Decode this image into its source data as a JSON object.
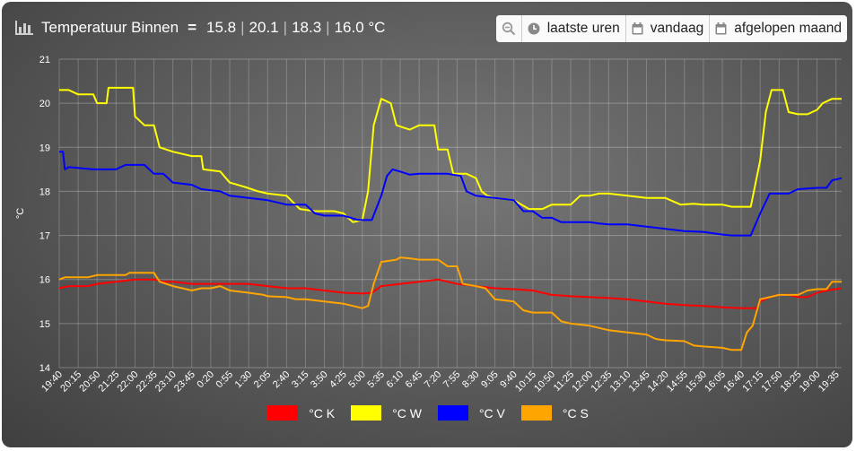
{
  "header": {
    "title": "Temperatuur Binnen",
    "values": [
      "15.8",
      "20.1",
      "18.3",
      "16.0 °C"
    ],
    "title_color": "#ffffff"
  },
  "toolbar": {
    "zoom_icon": "magnifier-minus-icon",
    "buttons": [
      {
        "label": "laatste uren",
        "icon": "clock-icon"
      },
      {
        "label": "vandaag",
        "icon": "calendar-icon"
      },
      {
        "label": "afgelopen maand",
        "icon": "calendar-icon"
      }
    ]
  },
  "chart_data": {
    "type": "line",
    "title": "Temperatuur Binnen",
    "xlabel": "",
    "ylabel": "°C",
    "ylim": [
      14,
      21
    ],
    "yticks": [
      14,
      15,
      16,
      17,
      18,
      19,
      20,
      21
    ],
    "grid": true,
    "legend_position": "bottom-center",
    "x_ticks": [
      "19:40",
      "20:15",
      "20:50",
      "21:25",
      "22:00",
      "22:35",
      "23:10",
      "23:45",
      "0:20",
      "0:55",
      "1:30",
      "2:05",
      "2:40",
      "3:15",
      "3:50",
      "4:25",
      "5:00",
      "5:35",
      "6:10",
      "6:45",
      "7:20",
      "7:55",
      "8:30",
      "9:05",
      "9:40",
      "10:15",
      "10:50",
      "11:25",
      "12:00",
      "12:35",
      "13:10",
      "13:45",
      "14:20",
      "14:55",
      "15:30",
      "16:05",
      "16:40",
      "17:15",
      "17:50",
      "18:25",
      "19:00",
      "19:35"
    ],
    "series": [
      {
        "name": "°C K",
        "color": "#ff0000",
        "points": [
          [
            0,
            15.8
          ],
          [
            0.5,
            15.85
          ],
          [
            1.5,
            15.85
          ],
          [
            2,
            15.9
          ],
          [
            3,
            15.95
          ],
          [
            4,
            16.0
          ],
          [
            5,
            16.0
          ],
          [
            5.5,
            15.95
          ],
          [
            6,
            15.95
          ],
          [
            7,
            15.9
          ],
          [
            8,
            15.9
          ],
          [
            9,
            15.9
          ],
          [
            10,
            15.9
          ],
          [
            11,
            15.85
          ],
          [
            12,
            15.8
          ],
          [
            13,
            15.8
          ],
          [
            14,
            15.75
          ],
          [
            15,
            15.7
          ],
          [
            16,
            15.68
          ],
          [
            16.5,
            15.7
          ],
          [
            17,
            15.85
          ],
          [
            18,
            15.9
          ],
          [
            19,
            15.95
          ],
          [
            20,
            16.0
          ],
          [
            20.5,
            15.95
          ],
          [
            21,
            15.9
          ],
          [
            22,
            15.85
          ],
          [
            23,
            15.8
          ],
          [
            24,
            15.78
          ],
          [
            25,
            15.75
          ],
          [
            26,
            15.65
          ],
          [
            27,
            15.62
          ],
          [
            28,
            15.6
          ],
          [
            29,
            15.58
          ],
          [
            30,
            15.55
          ],
          [
            31,
            15.5
          ],
          [
            32,
            15.45
          ],
          [
            33,
            15.42
          ],
          [
            34,
            15.4
          ],
          [
            35,
            15.37
          ],
          [
            36,
            15.35
          ],
          [
            36.8,
            15.35
          ],
          [
            37,
            15.5
          ],
          [
            37.5,
            15.6
          ],
          [
            38,
            15.65
          ],
          [
            38.5,
            15.65
          ],
          [
            39,
            15.6
          ],
          [
            39.5,
            15.6
          ],
          [
            40,
            15.7
          ],
          [
            40.5,
            15.75
          ],
          [
            41,
            15.78
          ],
          [
            41.3,
            15.8
          ]
        ]
      },
      {
        "name": "°C W",
        "color": "#ffff00",
        "points": [
          [
            0,
            20.3
          ],
          [
            0.5,
            20.3
          ],
          [
            1,
            20.2
          ],
          [
            1.8,
            20.2
          ],
          [
            2,
            20.0
          ],
          [
            2.5,
            20.0
          ],
          [
            2.6,
            20.35
          ],
          [
            3.9,
            20.35
          ],
          [
            4,
            19.7
          ],
          [
            4.5,
            19.5
          ],
          [
            5,
            19.5
          ],
          [
            5.3,
            19.0
          ],
          [
            6,
            18.9
          ],
          [
            7,
            18.8
          ],
          [
            7.5,
            18.8
          ],
          [
            7.6,
            18.5
          ],
          [
            8.5,
            18.45
          ],
          [
            9,
            18.2
          ],
          [
            9.8,
            18.1
          ],
          [
            10.5,
            18.0
          ],
          [
            11,
            17.95
          ],
          [
            12,
            17.9
          ],
          [
            12.7,
            17.6
          ],
          [
            13.5,
            17.55
          ],
          [
            14.5,
            17.55
          ],
          [
            15,
            17.5
          ],
          [
            15.5,
            17.3
          ],
          [
            16,
            17.35
          ],
          [
            16.3,
            18.0
          ],
          [
            16.6,
            19.5
          ],
          [
            17,
            20.1
          ],
          [
            17.5,
            20.0
          ],
          [
            17.8,
            19.5
          ],
          [
            18.5,
            19.4
          ],
          [
            19,
            19.5
          ],
          [
            19.8,
            19.5
          ],
          [
            20,
            18.95
          ],
          [
            20.5,
            18.95
          ],
          [
            20.8,
            18.4
          ],
          [
            21.5,
            18.4
          ],
          [
            22,
            18.3
          ],
          [
            22.3,
            18.0
          ],
          [
            22.6,
            17.9
          ],
          [
            23,
            17.85
          ],
          [
            24,
            17.8
          ],
          [
            24.8,
            17.6
          ],
          [
            25.5,
            17.6
          ],
          [
            26,
            17.7
          ],
          [
            27,
            17.7
          ],
          [
            27.5,
            17.9
          ],
          [
            28,
            17.9
          ],
          [
            28.5,
            17.95
          ],
          [
            29,
            17.95
          ],
          [
            30,
            17.9
          ],
          [
            31,
            17.85
          ],
          [
            32,
            17.85
          ],
          [
            32.8,
            17.7
          ],
          [
            33.5,
            17.72
          ],
          [
            34,
            17.7
          ],
          [
            35,
            17.7
          ],
          [
            35.5,
            17.65
          ],
          [
            36.5,
            17.65
          ],
          [
            37,
            18.7
          ],
          [
            37.3,
            19.8
          ],
          [
            37.6,
            20.3
          ],
          [
            38.2,
            20.3
          ],
          [
            38.5,
            19.8
          ],
          [
            39,
            19.75
          ],
          [
            39.5,
            19.75
          ],
          [
            40,
            19.85
          ],
          [
            40.3,
            20.0
          ],
          [
            40.8,
            20.1
          ],
          [
            41.3,
            20.1
          ]
        ]
      },
      {
        "name": "°C V",
        "color": "#0000ff",
        "points": [
          [
            0,
            18.9
          ],
          [
            0.2,
            18.9
          ],
          [
            0.3,
            18.5
          ],
          [
            0.5,
            18.55
          ],
          [
            1.8,
            18.5
          ],
          [
            3,
            18.5
          ],
          [
            3.5,
            18.6
          ],
          [
            4.5,
            18.6
          ],
          [
            5,
            18.4
          ],
          [
            5.5,
            18.4
          ],
          [
            6,
            18.2
          ],
          [
            7,
            18.15
          ],
          [
            7.5,
            18.05
          ],
          [
            8.5,
            18.0
          ],
          [
            9,
            17.9
          ],
          [
            10,
            17.85
          ],
          [
            11,
            17.8
          ],
          [
            12,
            17.7
          ],
          [
            13,
            17.7
          ],
          [
            13.5,
            17.5
          ],
          [
            14,
            17.45
          ],
          [
            15,
            17.45
          ],
          [
            15.8,
            17.35
          ],
          [
            16.5,
            17.35
          ],
          [
            17,
            17.9
          ],
          [
            17.3,
            18.35
          ],
          [
            17.6,
            18.5
          ],
          [
            18,
            18.45
          ],
          [
            18.5,
            18.38
          ],
          [
            19,
            18.4
          ],
          [
            20.5,
            18.4
          ],
          [
            21.2,
            18.35
          ],
          [
            21.5,
            18.0
          ],
          [
            22,
            17.9
          ],
          [
            23,
            17.85
          ],
          [
            24,
            17.8
          ],
          [
            24.5,
            17.55
          ],
          [
            25,
            17.55
          ],
          [
            25.5,
            17.4
          ],
          [
            26,
            17.4
          ],
          [
            26.5,
            17.3
          ],
          [
            27.5,
            17.3
          ],
          [
            28,
            17.3
          ],
          [
            28.5,
            17.27
          ],
          [
            29,
            17.25
          ],
          [
            30,
            17.25
          ],
          [
            31,
            17.2
          ],
          [
            32,
            17.15
          ],
          [
            33,
            17.1
          ],
          [
            34,
            17.08
          ],
          [
            35,
            17.02
          ],
          [
            35.5,
            17.0
          ],
          [
            36.5,
            17.0
          ],
          [
            37,
            17.5
          ],
          [
            37.5,
            17.95
          ],
          [
            38.5,
            17.95
          ],
          [
            39,
            18.05
          ],
          [
            40,
            18.08
          ],
          [
            40.5,
            18.08
          ],
          [
            40.8,
            18.25
          ],
          [
            41.3,
            18.3
          ]
        ]
      },
      {
        "name": "°C S",
        "color": "#ffa500",
        "points": [
          [
            0,
            16.0
          ],
          [
            0.3,
            16.05
          ],
          [
            1.5,
            16.05
          ],
          [
            2,
            16.1
          ],
          [
            3.5,
            16.1
          ],
          [
            3.7,
            16.15
          ],
          [
            5,
            16.15
          ],
          [
            5.3,
            15.95
          ],
          [
            6,
            15.85
          ],
          [
            6.5,
            15.8
          ],
          [
            7,
            15.75
          ],
          [
            7.5,
            15.8
          ],
          [
            8,
            15.8
          ],
          [
            8.5,
            15.85
          ],
          [
            9,
            15.75
          ],
          [
            10,
            15.7
          ],
          [
            10.8,
            15.65
          ],
          [
            11,
            15.62
          ],
          [
            12,
            15.6
          ],
          [
            12.5,
            15.55
          ],
          [
            13,
            15.55
          ],
          [
            14,
            15.5
          ],
          [
            15,
            15.45
          ],
          [
            15.5,
            15.4
          ],
          [
            16,
            15.35
          ],
          [
            16.3,
            15.4
          ],
          [
            16.6,
            15.9
          ],
          [
            17,
            16.4
          ],
          [
            17.8,
            16.45
          ],
          [
            18,
            16.5
          ],
          [
            18.5,
            16.48
          ],
          [
            19,
            16.45
          ],
          [
            20,
            16.45
          ],
          [
            20.5,
            16.3
          ],
          [
            21,
            16.3
          ],
          [
            21.3,
            15.9
          ],
          [
            22,
            15.85
          ],
          [
            22.5,
            15.8
          ],
          [
            23,
            15.55
          ],
          [
            24,
            15.5
          ],
          [
            24.5,
            15.3
          ],
          [
            25,
            15.25
          ],
          [
            26,
            15.25
          ],
          [
            26.5,
            15.05
          ],
          [
            27,
            15.0
          ],
          [
            28,
            14.95
          ],
          [
            28.5,
            14.9
          ],
          [
            29,
            14.85
          ],
          [
            30,
            14.8
          ],
          [
            31,
            14.75
          ],
          [
            31.5,
            14.65
          ],
          [
            32,
            14.62
          ],
          [
            33,
            14.6
          ],
          [
            33.5,
            14.5
          ],
          [
            34,
            14.48
          ],
          [
            35,
            14.45
          ],
          [
            35.5,
            14.4
          ],
          [
            36,
            14.4
          ],
          [
            36.3,
            14.8
          ],
          [
            36.6,
            14.95
          ],
          [
            37,
            15.55
          ],
          [
            37.5,
            15.6
          ],
          [
            38,
            15.65
          ],
          [
            39,
            15.65
          ],
          [
            39.5,
            15.75
          ],
          [
            40,
            15.78
          ],
          [
            40.5,
            15.78
          ],
          [
            40.8,
            15.95
          ],
          [
            41.3,
            15.95
          ]
        ]
      }
    ]
  }
}
